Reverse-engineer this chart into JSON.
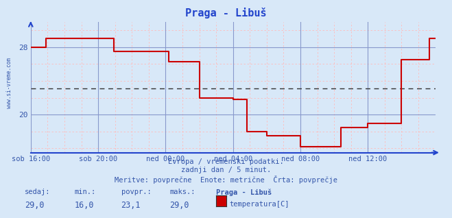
{
  "title": "Praga - Libuš",
  "bg_color": "#d8e8f8",
  "plot_bg_color": "#d8e8f8",
  "line_color": "#cc0000",
  "avg_line_color": "#880000",
  "avg_value": 23.1,
  "ylim": [
    15.5,
    31.0
  ],
  "yticks": [
    20,
    28
  ],
  "xlabel_color": "#3355aa",
  "title_color": "#2244cc",
  "watermark": "www.si-vreme.com",
  "footer_line1": "Evropa / vremenski podatki.",
  "footer_line2": "zadnji dan / 5 minut.",
  "footer_line3": "Meritve: povprečne  Enote: metrične  Črta: povprečje",
  "legend_labels": [
    "sedaj:",
    "min.:",
    "povpr.:",
    "maks.:",
    "Praga - Libuš"
  ],
  "legend_values": [
    "29,0",
    "16,0",
    "23,1",
    "29,0"
  ],
  "legend_series": "temperatura[C]",
  "x_labels": [
    "sob 16:00",
    "sob 20:00",
    "ned 00:00",
    "ned 04:00",
    "ned 08:00",
    "ned 12:00"
  ],
  "x_positions": [
    0,
    48,
    96,
    144,
    192,
    240
  ],
  "total_points": 288,
  "steps_x": [
    0,
    10,
    11,
    58,
    59,
    97,
    98,
    119,
    120,
    143,
    144,
    153,
    154,
    167,
    168,
    191,
    192,
    220,
    221,
    239,
    240,
    263,
    264,
    283,
    284,
    288
  ],
  "steps_y": [
    28.0,
    28.0,
    29.0,
    29.0,
    27.5,
    27.5,
    26.3,
    26.3,
    22.0,
    22.0,
    21.8,
    21.8,
    18.0,
    18.0,
    17.5,
    17.5,
    16.2,
    16.2,
    18.5,
    18.5,
    19.0,
    19.0,
    26.5,
    26.5,
    29.0,
    29.0
  ],
  "grid_major_color": "#8899cc",
  "grid_minor_color": "#ffbbbb",
  "axis_color": "#2244cc",
  "text_color": "#3355aa"
}
